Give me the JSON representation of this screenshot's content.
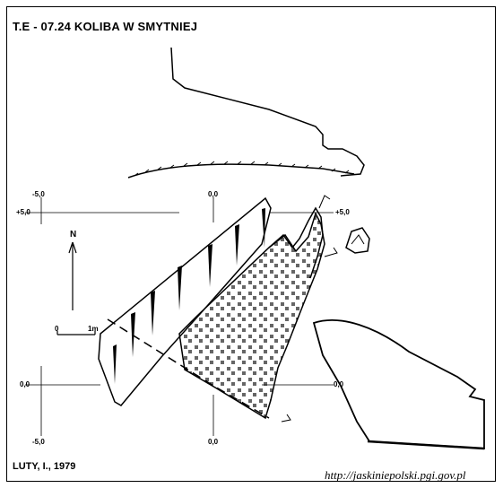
{
  "title": "T.E - 07.24  KOLIBA W SMYTNIEJ",
  "author": "LUTY, I., 1979",
  "source_url": "http://jaskiniepolski.pgi.gov.pl",
  "north_label": "N",
  "scale_bar": {
    "start_label": "0",
    "end_label": "1m"
  },
  "grid_labels": {
    "top_left_x": "-5,0",
    "top_center_x": "0,0",
    "left_top_y": "+5,0",
    "right_top_y": "+5,0",
    "left_zero_y": "0,0",
    "right_zero_y": "0,0",
    "bottom_left_x": "-5,0",
    "bottom_center_x": "0,0"
  },
  "colors": {
    "ink": "#000000",
    "background": "#ffffff"
  }
}
